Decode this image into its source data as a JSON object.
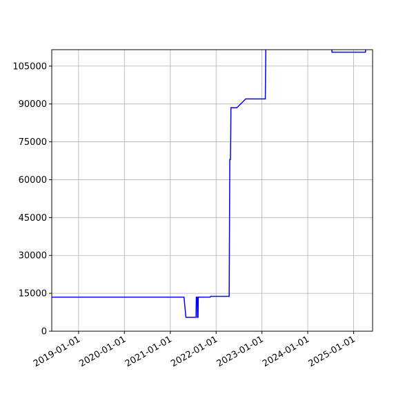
{
  "chart_data": {
    "type": "line",
    "title": "",
    "xlabel": "",
    "ylabel": "",
    "grid": true,
    "x_axis": {
      "scale": "date",
      "range": [
        "2018-06-01",
        "2025-06-01"
      ],
      "ticks": [
        "2019-01-01",
        "2020-01-01",
        "2021-01-01",
        "2022-01-01",
        "2023-01-01",
        "2024-01-01",
        "2025-01-01"
      ]
    },
    "y_axis": {
      "range": [
        0,
        111500
      ],
      "ticks": [
        0,
        15000,
        30000,
        45000,
        60000,
        75000,
        90000,
        105000
      ],
      "tick_labels": [
        "0",
        "15000",
        "30000",
        "45000",
        "60000",
        "75000",
        "90000",
        "105000"
      ]
    },
    "series": [
      {
        "color": "#0000ff",
        "points": [
          [
            "2018-06-01",
            13500
          ],
          [
            "2021-04-20",
            13500
          ],
          [
            "2021-05-05",
            5500
          ],
          [
            "2021-07-25",
            5500
          ],
          [
            "2021-07-27",
            13500
          ],
          [
            "2021-08-03",
            13500
          ],
          [
            "2021-08-05",
            5500
          ],
          [
            "2021-08-10",
            5500
          ],
          [
            "2021-08-12",
            13500
          ],
          [
            "2021-11-15",
            13500
          ],
          [
            "2021-11-18",
            13800
          ],
          [
            "2022-04-15",
            13800
          ],
          [
            "2022-04-20",
            68000
          ],
          [
            "2022-04-25",
            68000
          ],
          [
            "2022-04-27",
            75000
          ],
          [
            "2022-04-29",
            88500
          ],
          [
            "2022-06-15",
            88500
          ],
          [
            "2022-08-25",
            92000
          ],
          [
            "2023-01-28",
            92000
          ],
          [
            "2023-02-01",
            112000
          ],
          [
            "2024-07-10",
            112000
          ],
          [
            "2024-07-12",
            110500
          ],
          [
            "2025-04-05",
            110500
          ],
          [
            "2025-04-07",
            112000
          ],
          [
            "2025-06-01",
            112000
          ]
        ]
      }
    ]
  }
}
